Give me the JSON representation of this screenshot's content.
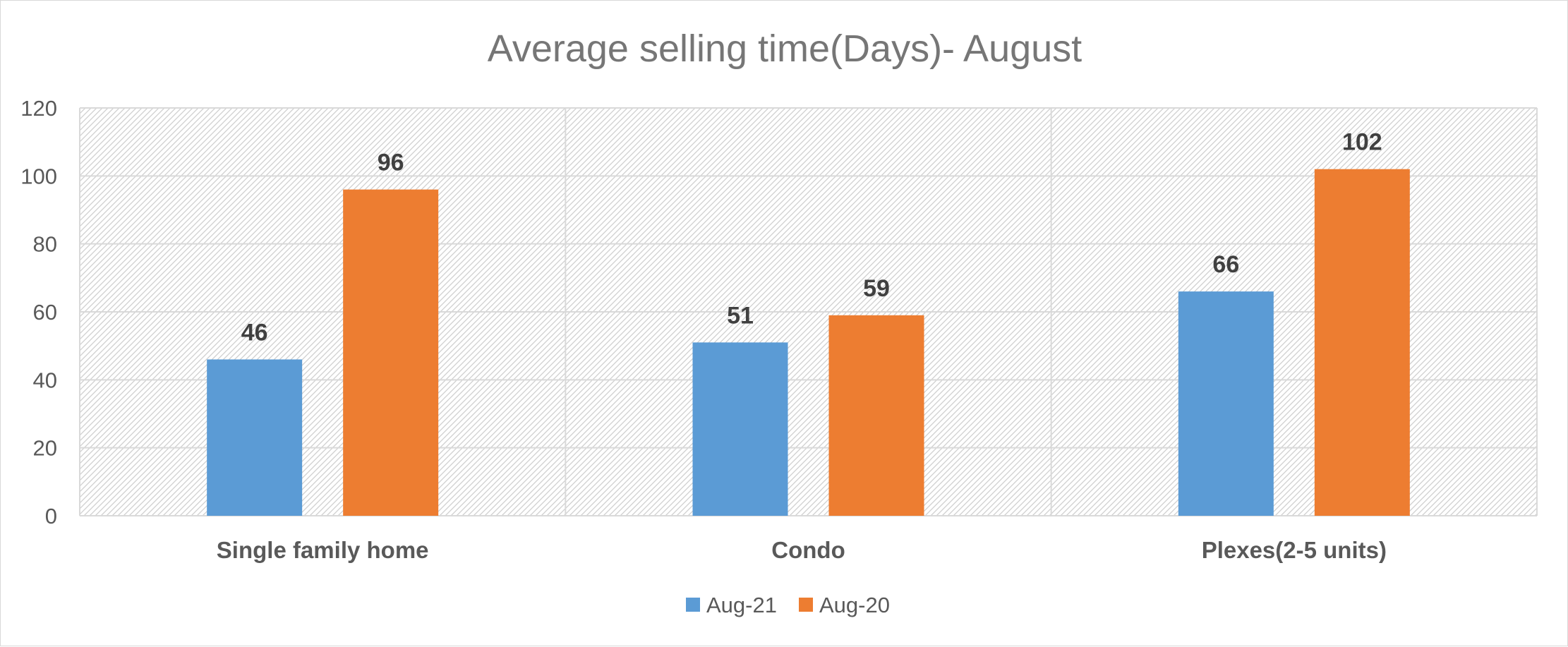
{
  "chart_data": {
    "type": "bar",
    "title": "Average selling time(Days)- August",
    "xlabel": "",
    "ylabel": "",
    "categories": [
      "Single family home",
      "Condo",
      "Plexes(2-5 units)"
    ],
    "series": [
      {
        "name": "Aug-21",
        "color": "#5b9bd5",
        "values": [
          46,
          51,
          66
        ]
      },
      {
        "name": "Aug-20",
        "color": "#ed7d31",
        "values": [
          96,
          59,
          102
        ]
      }
    ],
    "ylim": [
      0,
      120
    ],
    "yticks": [
      0,
      20,
      40,
      60,
      80,
      100,
      120
    ],
    "grid": true,
    "data_labels": true,
    "legend_position": "bottom"
  }
}
